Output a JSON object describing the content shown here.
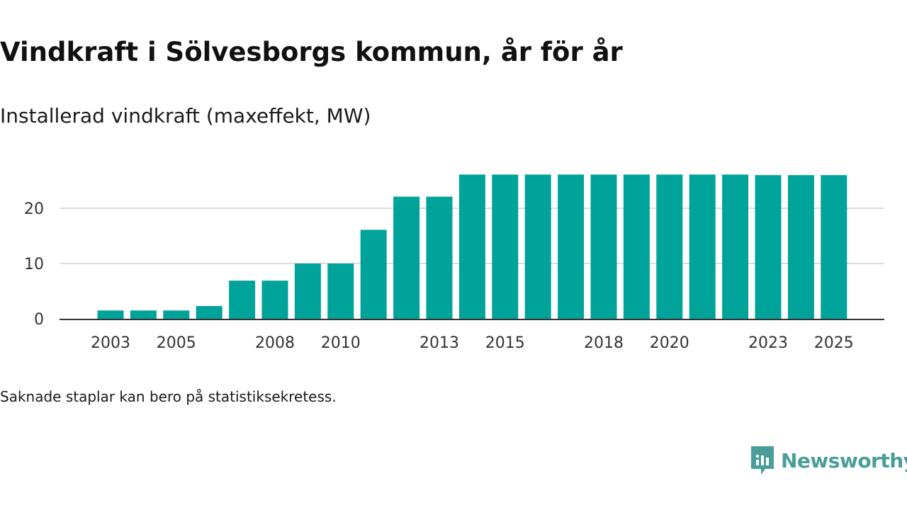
{
  "title": "Vindkraft i Sölvesborgs kommun, år för år",
  "subtitle": "Installerad vindkraft (maxeffekt, MW)",
  "footnote": "Saknade staplar kan bero på statistiksekretess.",
  "brand": {
    "name": "Newsworthy",
    "color": "#4a9d99"
  },
  "colors": {
    "bar": "#00a39a",
    "grid": "#dddddd",
    "axis": "#333333"
  },
  "chart_data": {
    "type": "bar",
    "title": "Vindkraft i Sölvesborgs kommun, år för år",
    "subtitle": "Installerad vindkraft (maxeffekt, MW)",
    "xlabel": "",
    "ylabel": "",
    "categories": [
      "2003",
      "2004",
      "2005",
      "2006",
      "2007",
      "2008",
      "2009",
      "2010",
      "2011",
      "2012",
      "2013",
      "2014",
      "2015",
      "2016",
      "2017",
      "2018",
      "2019",
      "2020",
      "2021",
      "2022",
      "2023",
      "2024",
      "2025"
    ],
    "values": [
      1.5,
      1.5,
      1.5,
      2.3,
      6.9,
      6.9,
      10,
      10,
      16.1,
      22.1,
      22.1,
      26.1,
      26.1,
      26.1,
      26.1,
      26.1,
      26.1,
      26.1,
      26.1,
      26.1,
      26,
      26,
      26
    ],
    "x_tick_labels": [
      "2003",
      "2005",
      "2008",
      "2010",
      "2013",
      "2015",
      "2018",
      "2020",
      "2023",
      "2025"
    ],
    "y_ticks": [
      0,
      10,
      20
    ],
    "ylim": [
      0,
      28
    ],
    "grid": true
  }
}
